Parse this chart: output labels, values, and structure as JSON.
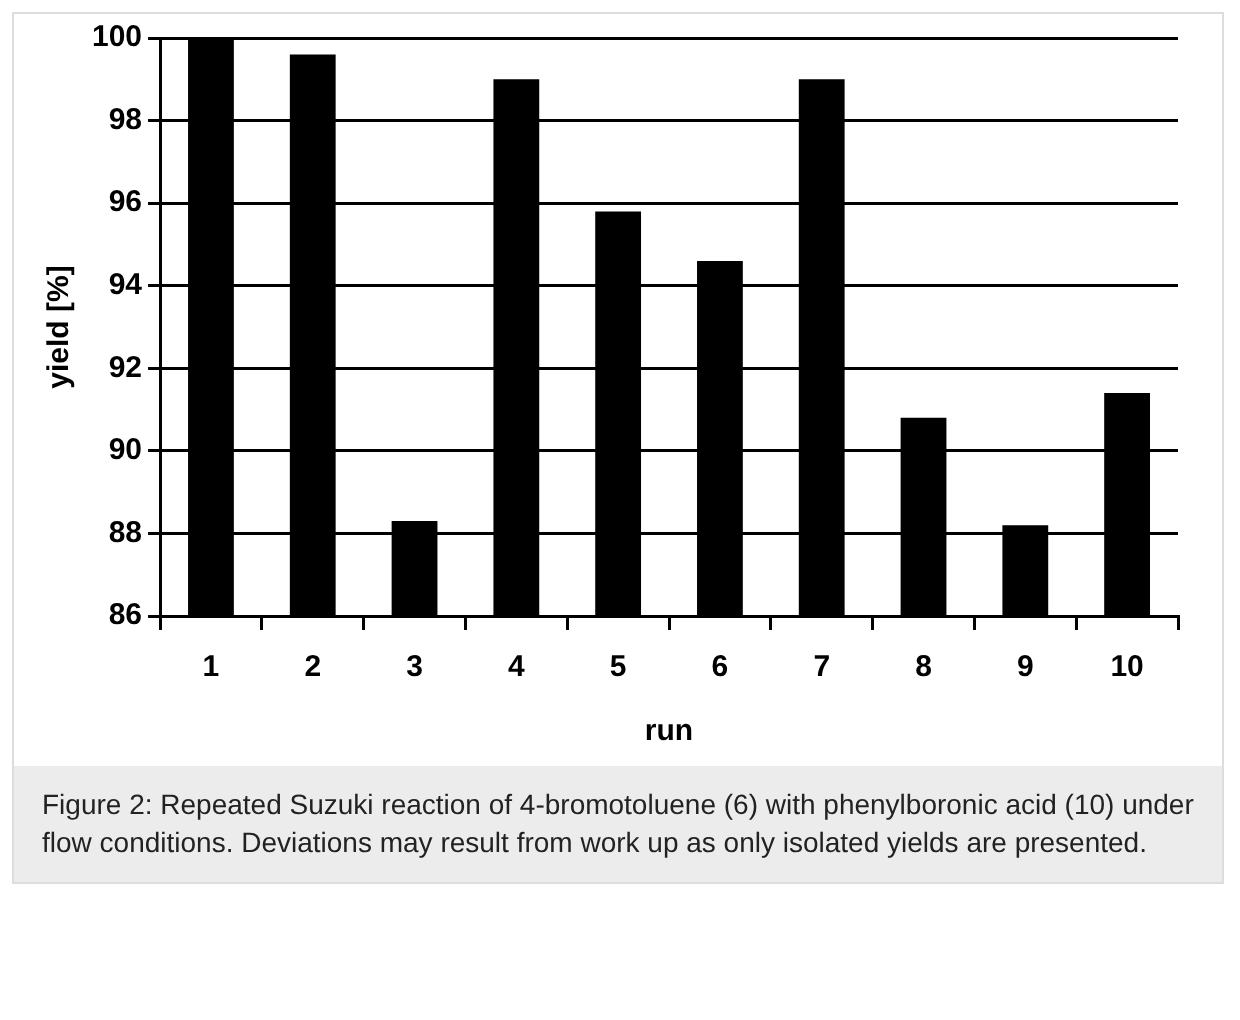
{
  "chart_data": {
    "type": "bar",
    "xlabel": "run",
    "ylabel": "yield [%]",
    "categories": [
      "1",
      "2",
      "3",
      "4",
      "5",
      "6",
      "7",
      "8",
      "9",
      "10"
    ],
    "values": [
      100,
      99.6,
      88.3,
      99.0,
      95.8,
      94.6,
      99.0,
      90.8,
      88.2,
      91.4
    ],
    "color": "#000000",
    "ylim": [
      86,
      100
    ],
    "yticks": [
      86,
      88,
      90,
      92,
      94,
      96,
      98,
      100
    ],
    "grid": "y",
    "annotations": [
      "Figure 2: Repeated Suzuki reaction of 4-bromotoluene (6) with phenylboronic acid (10) under flow conditions. Deviations may result from work up as only isolated yields are presented."
    ]
  }
}
